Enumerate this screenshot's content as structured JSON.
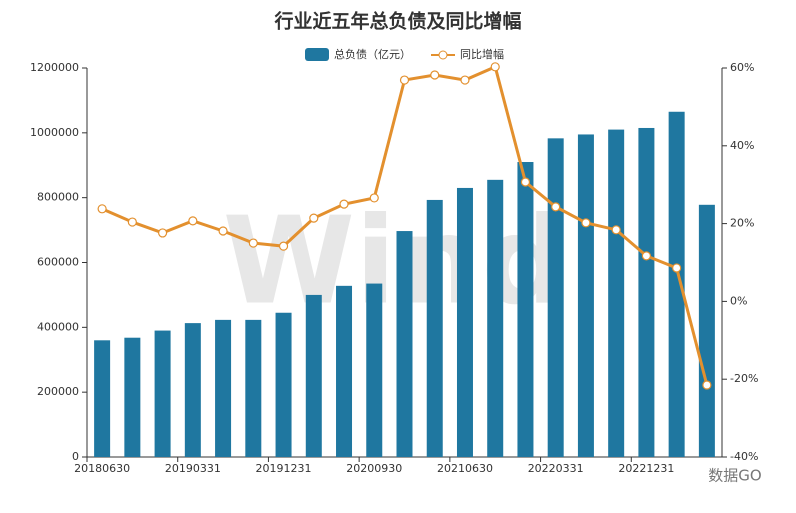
{
  "chart_data": {
    "type": "bar_line",
    "title": "行业近五年总负债及同比增幅",
    "watermark": "Wind",
    "credit": "数据GO",
    "categories": [
      "20180630",
      null,
      null,
      "20190331",
      null,
      null,
      "20191231",
      null,
      null,
      "20200930",
      null,
      null,
      "20210630",
      null,
      null,
      "20220331",
      null,
      null,
      "20221231",
      null,
      null
    ],
    "series": [
      {
        "name": "总负债（亿元）",
        "type": "bar",
        "color": "#1f77a0",
        "values": [
          360000,
          368000,
          390000,
          413000,
          423000,
          423000,
          445000,
          500000,
          528000,
          535000,
          697000,
          793000,
          830000,
          855000,
          910000,
          983000,
          995000,
          1010000,
          1015000,
          1065000,
          778000
        ]
      },
      {
        "name": "同比增幅",
        "type": "line",
        "axis": "y2",
        "color": "#e3902e",
        "values": [
          23.8,
          20.4,
          17.6,
          20.7,
          18.1,
          15.0,
          14.2,
          21.4,
          25.0,
          26.6,
          56.9,
          58.2,
          56.9,
          60.3,
          30.7,
          24.3,
          20.2,
          18.4,
          11.7,
          8.6,
          -21.5
        ]
      }
    ],
    "ylim": [
      0,
      1200000
    ],
    "yticks": [
      0,
      200000,
      400000,
      600000,
      800000,
      1000000,
      1200000
    ],
    "y2lim": [
      -40,
      60
    ],
    "y2ticks": [
      {
        "value": -40,
        "label": "-40%"
      },
      {
        "value": -20,
        "label": "-20%"
      },
      {
        "value": 0,
        "label": "0%"
      },
      {
        "value": 20,
        "label": "20%"
      },
      {
        "value": 40,
        "label": "40%"
      },
      {
        "value": 60,
        "label": "60%"
      }
    ]
  }
}
